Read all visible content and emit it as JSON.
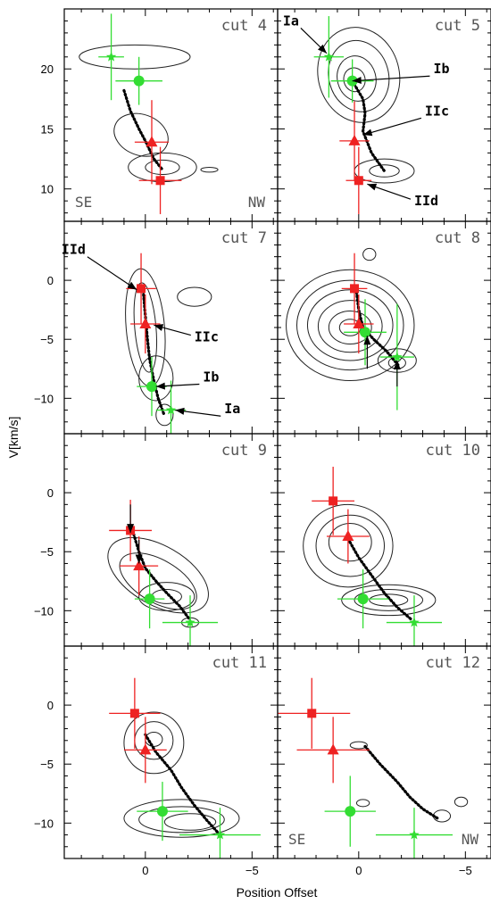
{
  "chart_data": {
    "type": "scatter",
    "xlabel": "Position Offset",
    "ylabel": "V[km/s]",
    "x_reversed": true,
    "xlim": [
      3.8,
      -6.2
    ],
    "x_ticks": [
      0,
      -5
    ],
    "x_tick_labels": [
      "0",
      "−5"
    ],
    "colors": {
      "star": "#33dd33",
      "circle": "#33dd33",
      "triangle": "#ee2222",
      "square": "#ee2222",
      "contour": "#222222",
      "track": "#000000"
    },
    "panels": [
      {
        "label": "cut 4",
        "ylim": [
          7.3,
          25
        ],
        "yticks": [
          10,
          15,
          20
        ],
        "corner_left": "SE",
        "corner_right": "NW",
        "points": {
          "star": {
            "x": 1.6,
            "y": 21.0,
            "dx": 0.6,
            "dy": 3.6
          },
          "circle": {
            "x": 0.3,
            "y": 19.0,
            "dx": 1.1,
            "dy": 2.0
          },
          "triangle": {
            "x": -0.3,
            "y": 13.9,
            "dx": 0.8,
            "dy": 3.5
          },
          "square": {
            "x": -0.7,
            "y": 10.7,
            "dx": 1.0,
            "dy": 2.8
          }
        },
        "track": [
          [
            1.0,
            18.2
          ],
          [
            0.7,
            16.5
          ],
          [
            0.3,
            15.0
          ],
          [
            0.0,
            14.0
          ],
          [
            -0.4,
            12.5
          ],
          [
            -0.8,
            11.6
          ]
        ],
        "contours": [
          {
            "cx": 0.5,
            "cy": 21.0,
            "rx": 2.6,
            "ry": 1.0,
            "rot": 0
          },
          {
            "cx": 0.2,
            "cy": 14.5,
            "rx": 1.3,
            "ry": 1.7,
            "rot": 20
          },
          {
            "cx": -0.8,
            "cy": 11.8,
            "rx": 1.6,
            "ry": 1.2,
            "rot": 0
          },
          {
            "cx": -0.8,
            "cy": 11.8,
            "rx": 0.8,
            "ry": 0.6,
            "rot": 0
          },
          {
            "cx": -3.0,
            "cy": 11.6,
            "rx": 0.4,
            "ry": 0.2,
            "rot": 0
          }
        ],
        "annotations": []
      },
      {
        "label": "cut 5",
        "ylim": [
          7.3,
          25
        ],
        "yticks": [
          10,
          15,
          20
        ],
        "corner_left": "",
        "corner_right": "",
        "points": {
          "star": {
            "x": 1.4,
            "y": 21.0,
            "dx": 0.7,
            "dy": 3.4
          },
          "circle": {
            "x": 0.3,
            "y": 19.0,
            "dx": 1.0,
            "dy": 1.8
          },
          "triangle": {
            "x": 0.2,
            "y": 14.0,
            "dx": 0.7,
            "dy": 3.3
          },
          "square": {
            "x": 0.0,
            "y": 10.7,
            "dx": 0.6,
            "dy": 2.8
          }
        },
        "track": [
          [
            0.3,
            19.0
          ],
          [
            -0.2,
            17.5
          ],
          [
            -0.3,
            16.3
          ],
          [
            -0.2,
            14.8
          ],
          [
            -0.6,
            13.0
          ],
          [
            -1.2,
            11.5
          ]
        ],
        "contours": [
          {
            "cx": 0.0,
            "cy": 19.5,
            "rx": 1.9,
            "ry": 4.0,
            "rot": -15
          },
          {
            "cx": 0.0,
            "cy": 19.4,
            "rx": 1.4,
            "ry": 3.0,
            "rot": -15
          },
          {
            "cx": 0.1,
            "cy": 19.2,
            "rx": 0.9,
            "ry": 1.9,
            "rot": -15
          },
          {
            "cx": 0.2,
            "cy": 19.1,
            "rx": 0.5,
            "ry": 1.0,
            "rot": -15
          },
          {
            "cx": -1.2,
            "cy": 11.5,
            "rx": 1.4,
            "ry": 1.0,
            "rot": 0
          },
          {
            "cx": -1.2,
            "cy": 11.5,
            "rx": 0.7,
            "ry": 0.5,
            "rot": 0
          }
        ],
        "annotations": [
          {
            "text": "Ia",
            "tx": 2.8,
            "ty": 24.0,
            "ax": 1.5,
            "ay": 21.3
          },
          {
            "text": "Ib",
            "tx": -3.5,
            "ty": 20.0,
            "ax": 0.3,
            "ay": 19.0
          },
          {
            "text": "IIc",
            "tx": -3.1,
            "ty": 16.5,
            "ax": -0.2,
            "ay": 14.5
          },
          {
            "text": "IId",
            "tx": -2.6,
            "ty": 9.0,
            "ax": -0.4,
            "ay": 10.4
          }
        ]
      },
      {
        "label": "cut 7",
        "ylim": [
          -13,
          5
        ],
        "yticks": [
          0,
          -5,
          -10
        ],
        "corner_left": "",
        "corner_right": "",
        "points": {
          "star": {
            "x": -1.2,
            "y": -11.0,
            "dx": 0.7,
            "dy": 2.5
          },
          "circle": {
            "x": -0.3,
            "y": -9.0,
            "dx": 0.7,
            "dy": 2.5
          },
          "triangle": {
            "x": 0.0,
            "y": -3.7,
            "dx": 0.7,
            "dy": 2.5
          },
          "square": {
            "x": 0.2,
            "y": -0.7,
            "dx": 0.7,
            "dy": 3.0
          }
        },
        "track": [
          [
            0.1,
            -0.9
          ],
          [
            0.0,
            -3.0
          ],
          [
            -0.1,
            -5.0
          ],
          [
            -0.2,
            -6.7
          ],
          [
            -0.4,
            -8.5
          ],
          [
            -0.6,
            -10.0
          ],
          [
            -0.9,
            -11.5
          ]
        ],
        "contours": [
          {
            "cx": 0.0,
            "cy": -4.0,
            "rx": 0.9,
            "ry": 5.0,
            "rot": -5
          },
          {
            "cx": 0.0,
            "cy": -4.0,
            "rx": 0.5,
            "ry": 3.8,
            "rot": -5
          },
          {
            "cx": -0.5,
            "cy": -8.3,
            "rx": 0.8,
            "ry": 1.9,
            "rot": 0
          },
          {
            "cx": -0.9,
            "cy": -11.4,
            "rx": 0.4,
            "ry": 0.9,
            "rot": 0
          },
          {
            "cx": -2.3,
            "cy": -1.4,
            "rx": 0.8,
            "ry": 0.8,
            "rot": 0
          }
        ],
        "annotations": [
          {
            "text": "IId",
            "tx": 2.8,
            "ty": 2.6,
            "ax": 0.4,
            "ay": -0.8
          },
          {
            "text": "IIc",
            "tx": -2.3,
            "ty": -4.8,
            "ax": -0.4,
            "ay": -3.8
          },
          {
            "text": "Ib",
            "tx": -2.7,
            "ty": -8.2,
            "ax": -0.5,
            "ay": -9.0
          },
          {
            "text": "Ia",
            "tx": -3.7,
            "ty": -10.9,
            "ax": -1.4,
            "ay": -11.0
          }
        ]
      },
      {
        "label": "cut 8",
        "ylim": [
          -13,
          5
        ],
        "yticks": [
          0,
          -5,
          -10
        ],
        "corner_left": "",
        "corner_right": "",
        "points": {
          "star": {
            "x": -1.8,
            "y": -6.5,
            "dx": 0.8,
            "dy": 4.5
          },
          "circle": {
            "x": -0.3,
            "y": -4.4,
            "dx": 1.0,
            "dy": 2.8
          },
          "triangle": {
            "x": 0.0,
            "y": -3.7,
            "dx": 0.7,
            "dy": 2.5
          },
          "square": {
            "x": 0.2,
            "y": -0.7,
            "dx": 0.6,
            "dy": 3.0
          }
        },
        "track": [
          [
            0.1,
            -1.0
          ],
          [
            0.0,
            -2.5
          ],
          [
            -0.2,
            -4.0
          ],
          [
            -0.7,
            -5.0
          ],
          [
            -1.3,
            -6.0
          ],
          [
            -1.9,
            -7.3
          ]
        ],
        "contours": [
          {
            "cx": 0.4,
            "cy": -3.8,
            "rx": 3.0,
            "ry": 4.7,
            "rot": 0
          },
          {
            "cx": 0.4,
            "cy": -3.8,
            "rx": 2.5,
            "ry": 3.8,
            "rot": 0
          },
          {
            "cx": 0.4,
            "cy": -3.8,
            "rx": 2.0,
            "ry": 3.0,
            "rot": 0
          },
          {
            "cx": 0.4,
            "cy": -3.9,
            "rx": 1.5,
            "ry": 2.2,
            "rot": 0
          },
          {
            "cx": 0.4,
            "cy": -4.0,
            "rx": 1.0,
            "ry": 1.4,
            "rot": 0
          },
          {
            "cx": 0.4,
            "cy": -4.0,
            "rx": 0.5,
            "ry": 0.7,
            "rot": 0
          },
          {
            "cx": -1.8,
            "cy": -6.8,
            "rx": 0.9,
            "ry": 1.0,
            "rot": 0
          },
          {
            "cx": -1.8,
            "cy": -7.0,
            "rx": 0.4,
            "ry": 0.5,
            "rot": 0
          },
          {
            "cx": -0.5,
            "cy": 2.2,
            "rx": 0.3,
            "ry": 0.5,
            "rot": 0
          }
        ],
        "annotations": [
          {
            "text": "",
            "tx": -0.4,
            "ty": -7.5,
            "ax": -0.4,
            "ay": -4.7
          },
          {
            "text": "",
            "tx": -1.8,
            "ty": -9.0,
            "ax": -1.8,
            "ay": -6.8
          }
        ]
      },
      {
        "label": "cut 9",
        "ylim": [
          -13,
          5
        ],
        "yticks": [
          0,
          -5,
          -10
        ],
        "corner_left": "",
        "corner_right": "",
        "points": {
          "star": {
            "x": -2.1,
            "y": -11.0,
            "dx": 1.3,
            "dy": 2.3
          },
          "circle": {
            "x": -0.2,
            "y": -9.0,
            "dx": 0.7,
            "dy": 2.5
          },
          "triangle": {
            "x": 0.3,
            "y": -6.2,
            "dx": 0.9,
            "dy": 2.5
          },
          "square": {
            "x": 0.7,
            "y": -3.2,
            "dx": 1.0,
            "dy": 2.6
          }
        },
        "track": [
          [
            0.6,
            -3.2
          ],
          [
            0.3,
            -5.0
          ],
          [
            0.0,
            -6.4
          ],
          [
            -0.5,
            -7.5
          ],
          [
            -1.0,
            -8.5
          ],
          [
            -1.6,
            -9.6
          ],
          [
            -2.1,
            -10.8
          ]
        ],
        "contours": [
          {
            "cx": -0.6,
            "cy": -7.0,
            "rx": 2.6,
            "ry": 2.5,
            "rot": 30
          },
          {
            "cx": -0.6,
            "cy": -7.5,
            "rx": 2.0,
            "ry": 1.8,
            "rot": 30
          },
          {
            "cx": -1.0,
            "cy": -8.8,
            "rx": 1.3,
            "ry": 1.2,
            "rot": 0
          },
          {
            "cx": -1.0,
            "cy": -8.8,
            "rx": 0.7,
            "ry": 0.6,
            "rot": 0
          },
          {
            "cx": -2.1,
            "cy": -11.0,
            "rx": 0.4,
            "ry": 0.4,
            "rot": 0
          }
        ],
        "annotations": [
          {
            "text": "",
            "tx": 0.7,
            "ty": -1.0,
            "ax": 0.7,
            "ay": -3.4
          },
          {
            "text": "",
            "tx": 0.3,
            "ty": -4.0,
            "ax": 0.3,
            "ay": -6.0
          }
        ]
      },
      {
        "label": "cut 10",
        "ylim": [
          -13,
          5
        ],
        "yticks": [
          0,
          -5,
          -10
        ],
        "corner_left": "",
        "corner_right": "",
        "points": {
          "star": {
            "x": -2.6,
            "y": -11.0,
            "dx": 1.3,
            "dy": 2.3
          },
          "circle": {
            "x": -0.2,
            "y": -9.0,
            "dx": 1.2,
            "dy": 2.5
          },
          "triangle": {
            "x": 0.5,
            "y": -3.7,
            "dx": 1.0,
            "dy": 2.3
          },
          "square": {
            "x": 1.2,
            "y": -0.7,
            "dx": 1.0,
            "dy": 2.9
          }
        },
        "track": [
          [
            0.5,
            -3.9
          ],
          [
            0.0,
            -5.5
          ],
          [
            -0.6,
            -7.0
          ],
          [
            -1.2,
            -8.5
          ],
          [
            -1.8,
            -9.7
          ],
          [
            -2.5,
            -10.8
          ]
        ],
        "contours": [
          {
            "cx": 0.5,
            "cy": -4.5,
            "rx": 2.1,
            "ry": 3.5,
            "rot": 0
          },
          {
            "cx": 0.4,
            "cy": -4.5,
            "rx": 1.6,
            "ry": 2.6,
            "rot": 0
          },
          {
            "cx": 0.4,
            "cy": -4.2,
            "rx": 1.0,
            "ry": 1.6,
            "rot": 0
          },
          {
            "cx": -1.4,
            "cy": -9.1,
            "rx": 2.2,
            "ry": 1.3,
            "rot": 0
          },
          {
            "cx": -1.4,
            "cy": -9.1,
            "rx": 1.6,
            "ry": 0.9,
            "rot": 0
          },
          {
            "cx": -1.4,
            "cy": -9.1,
            "rx": 0.9,
            "ry": 0.5,
            "rot": 0
          }
        ],
        "annotations": []
      },
      {
        "label": "cut 11",
        "ylim": [
          -13,
          5
        ],
        "yticks": [
          0,
          -5,
          -10
        ],
        "corner_left": "",
        "corner_right": "",
        "points": {
          "star": {
            "x": -3.5,
            "y": -11.0,
            "dx": 1.9,
            "dy": 2.3
          },
          "circle": {
            "x": -0.8,
            "y": -9.0,
            "dx": 1.2,
            "dy": 2.5
          },
          "triangle": {
            "x": 0.0,
            "y": -3.8,
            "dx": 1.0,
            "dy": 2.8
          },
          "square": {
            "x": 0.5,
            "y": -0.7,
            "dx": 1.2,
            "dy": 3.0
          }
        },
        "track": [
          [
            0.0,
            -2.5
          ],
          [
            -0.5,
            -4.0
          ],
          [
            -1.2,
            -5.5
          ],
          [
            -1.7,
            -7.0
          ],
          [
            -2.3,
            -8.5
          ],
          [
            -2.9,
            -9.8
          ],
          [
            -3.5,
            -11.0
          ]
        ],
        "contours": [
          {
            "cx": -0.4,
            "cy": -3.2,
            "rx": 1.4,
            "ry": 2.6,
            "rot": 0
          },
          {
            "cx": -0.4,
            "cy": -3.0,
            "rx": 0.9,
            "ry": 1.6,
            "rot": 0
          },
          {
            "cx": -0.4,
            "cy": -2.9,
            "rx": 0.4,
            "ry": 0.6,
            "rot": 0
          },
          {
            "cx": -1.7,
            "cy": -9.6,
            "rx": 2.7,
            "ry": 1.6,
            "rot": 0
          },
          {
            "cx": -1.7,
            "cy": -9.7,
            "rx": 2.0,
            "ry": 1.1,
            "rot": 0
          },
          {
            "cx": -2.1,
            "cy": -9.9,
            "rx": 1.2,
            "ry": 0.7,
            "rot": 0
          }
        ],
        "annotations": []
      },
      {
        "label": "cut 12",
        "ylim": [
          -13,
          5
        ],
        "yticks": [
          0,
          -5,
          -10
        ],
        "corner_left": "SE",
        "corner_right": "NW",
        "points": {
          "star": {
            "x": -2.6,
            "y": -11.0,
            "dx": 1.8,
            "dy": 2.3
          },
          "circle": {
            "x": 0.4,
            "y": -9.0,
            "dx": 1.2,
            "dy": 3.0
          },
          "triangle": {
            "x": 1.2,
            "y": -3.8,
            "dx": 1.7,
            "dy": 2.8
          },
          "square": {
            "x": 2.2,
            "y": -0.7,
            "dx": 1.8,
            "dy": 3.0
          }
        },
        "track": [
          [
            -0.3,
            -3.5
          ],
          [
            -1.0,
            -5.0
          ],
          [
            -1.8,
            -6.5
          ],
          [
            -2.4,
            -7.8
          ],
          [
            -3.0,
            -8.8
          ],
          [
            -3.7,
            -9.6
          ]
        ],
        "contours": [
          {
            "cx": -3.9,
            "cy": -9.4,
            "rx": 0.4,
            "ry": 0.5,
            "rot": 0
          },
          {
            "cx": -4.8,
            "cy": -8.2,
            "rx": 0.3,
            "ry": 0.4,
            "rot": 0
          },
          {
            "cx": 0.0,
            "cy": -3.4,
            "rx": 0.4,
            "ry": 0.3,
            "rot": 0
          },
          {
            "cx": -0.2,
            "cy": -8.3,
            "rx": 0.3,
            "ry": 0.3,
            "rot": 0
          }
        ],
        "annotations": []
      }
    ]
  }
}
